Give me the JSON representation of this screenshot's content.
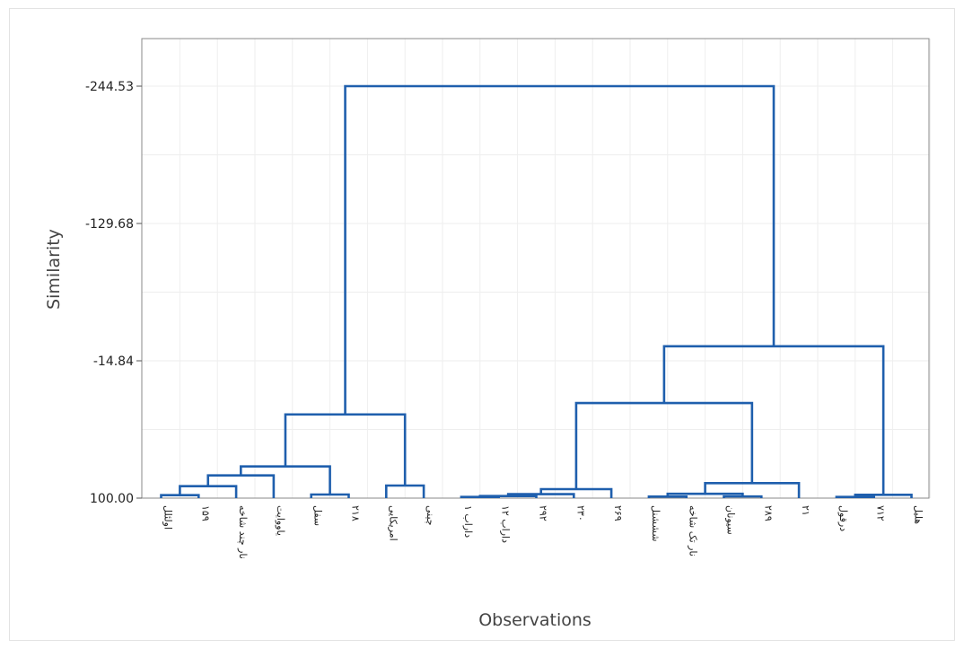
{
  "chart_data": {
    "type": "dendrogram",
    "title": "",
    "xlabel": "Observations",
    "ylabel": "Similarity",
    "yticks": [
      -244.53,
      -129.68,
      -14.84,
      100.0
    ],
    "ytick_labels": [
      "-244.53",
      "-129.68",
      "-14.84",
      "100.00"
    ],
    "ylim": [
      100.0,
      -276.0
    ],
    "grid": true,
    "leaves": [
      "اولئلل",
      "۱۵۹",
      "نار چند شاخه",
      "یاووایت",
      "سفل",
      "۲۱۸",
      "امریکایی",
      "چینی",
      "داراب ۱",
      "داراب ۱۲",
      "۲۹۲",
      "۲۳۰",
      "۲۶۹",
      "شششنل",
      "نار تک شاخه",
      "سیونان",
      "۲۸۹",
      "۲۱",
      "درقول",
      "۷۱۲",
      "هلیل"
    ],
    "merges": [
      {
        "a": [
          0
        ],
        "b": [
          1
        ],
        "h": 97.5
      },
      {
        "a": [
          0,
          1
        ],
        "b": [
          2
        ],
        "h": 90.0
      },
      {
        "a": [
          0,
          1,
          2
        ],
        "b": [
          3
        ],
        "h": 81.0
      },
      {
        "a": [
          4
        ],
        "b": [
          5
        ],
        "h": 97.0
      },
      {
        "a": [
          0,
          1,
          2,
          3
        ],
        "b": [
          4,
          5
        ],
        "h": 73.5
      },
      {
        "a": [
          6
        ],
        "b": [
          7
        ],
        "h": 89.5
      },
      {
        "a": [
          0,
          1,
          2,
          3,
          4,
          5
        ],
        "b": [
          6,
          7
        ],
        "h": 30.0
      },
      {
        "a": [
          8
        ],
        "b": [
          9
        ],
        "h": 99.0
      },
      {
        "a": [
          8,
          9
        ],
        "b": [
          10
        ],
        "h": 98.3
      },
      {
        "a": [
          8,
          9,
          10
        ],
        "b": [
          11
        ],
        "h": 96.7
      },
      {
        "a": [
          8,
          9,
          10,
          11
        ],
        "b": [
          12
        ],
        "h": 92.5
      },
      {
        "a": [
          13
        ],
        "b": [
          14
        ],
        "h": 98.7
      },
      {
        "a": [
          15
        ],
        "b": [
          16
        ],
        "h": 98.6
      },
      {
        "a": [
          13,
          14
        ],
        "b": [
          15,
          16
        ],
        "h": 96.4
      },
      {
        "a": [
          13,
          14,
          15,
          16
        ],
        "b": [
          17
        ],
        "h": 87.5
      },
      {
        "a": [
          8,
          9,
          10,
          11,
          12
        ],
        "b": [
          13,
          14,
          15,
          16,
          17
        ],
        "h": 20.5
      },
      {
        "a": [
          18
        ],
        "b": [
          19
        ],
        "h": 99.0
      },
      {
        "a": [
          18,
          19
        ],
        "b": [
          20
        ],
        "h": 97.2
      },
      {
        "a": [
          8,
          9,
          10,
          11,
          12,
          13,
          14,
          15,
          16,
          17
        ],
        "b": [
          18,
          19,
          20
        ],
        "h": -27.0
      },
      {
        "a": [
          0,
          1,
          2,
          3,
          4,
          5,
          6,
          7
        ],
        "b": [
          8,
          9,
          10,
          11,
          12,
          13,
          14,
          15,
          16,
          17,
          18,
          19,
          20
        ],
        "h": -244.53
      }
    ],
    "colors": {
      "line": "#1f5fad",
      "plot_border": "#8a8a8a",
      "grid": "#eeeeee"
    }
  }
}
